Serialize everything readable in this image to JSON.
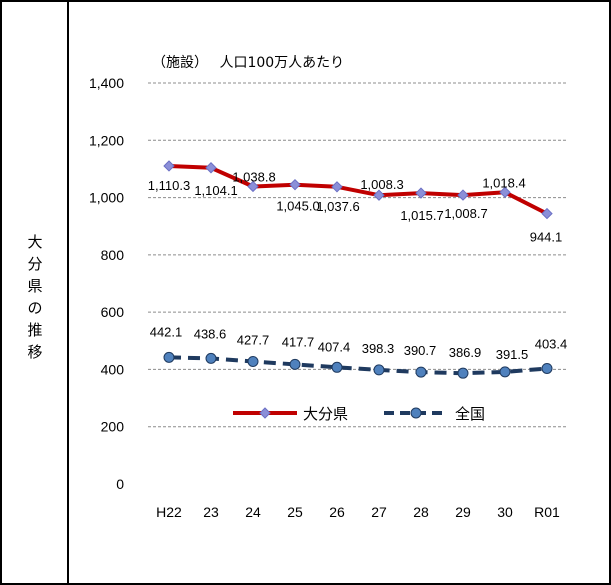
{
  "side_label": "大分県の推移",
  "chart_data": {
    "type": "line",
    "title": "（施設）　 人口100万人あたり",
    "categories": [
      "H22",
      "23",
      "24",
      "25",
      "26",
      "27",
      "28",
      "29",
      "30",
      "R01"
    ],
    "ylim": [
      0,
      1400
    ],
    "yticks": [
      "0",
      "200",
      "400",
      "600",
      "800",
      "1,000",
      "1,200",
      "1,400"
    ],
    "grid": true,
    "legend_position": "center",
    "series": [
      {
        "name": "大分県",
        "values": [
          1110.3,
          1104.1,
          1038.8,
          1045.0,
          1037.6,
          1008.3,
          1015.7,
          1008.7,
          1018.4,
          944.1
        ],
        "labels": [
          "1,110.3",
          "1,104.1",
          "1,038.8",
          "1,045.0",
          "1,037.6",
          "1,008.3",
          "1,015.7",
          "1,008.7",
          "1,018.4",
          "944.1"
        ],
        "color": "#C00000",
        "marker_color": "#8B8FD8",
        "style": "solid"
      },
      {
        "name": "全国",
        "values": [
          442.1,
          438.6,
          427.7,
          417.7,
          407.4,
          398.3,
          390.7,
          386.9,
          391.5,
          403.4
        ],
        "labels": [
          "442.1",
          "438.6",
          "427.7",
          "417.7",
          "407.4",
          "398.3",
          "390.7",
          "386.9",
          "391.5",
          "403.4"
        ],
        "color": "#1F3A5F",
        "marker_color": "#4F81BD",
        "style": "dashed"
      }
    ]
  }
}
